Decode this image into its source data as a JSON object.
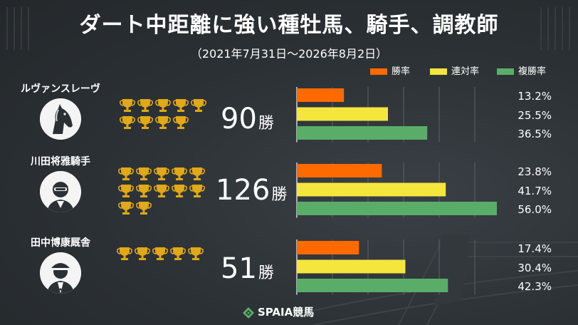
{
  "title": "ダート中距離に強い種牡馬、騎手、調教師",
  "subtitle": "（2021年7月31日～2026年8月2日）",
  "legend": [
    {
      "label": "勝率",
      "color": "#ff6a00"
    },
    {
      "label": "連対率",
      "color": "#f4e63c"
    },
    {
      "label": "複勝率",
      "color": "#5aad68"
    }
  ],
  "groups": [
    {
      "name": "ルヴァンスレーヴ",
      "avatar_icon": "horse-head-icon",
      "wins_number": "90",
      "wins_unit": "勝",
      "trophies": 9,
      "labels": [
        "13.2%",
        "25.5%",
        "36.5%"
      ]
    },
    {
      "name": "川田将雅騎手",
      "avatar_icon": "jockey-icon",
      "wins_number": "126",
      "wins_unit": "勝",
      "trophies": 12,
      "labels": [
        "23.8%",
        "41.7%",
        "56.0%"
      ]
    },
    {
      "name": "田中博康厩舎",
      "avatar_icon": "trainer-icon",
      "wins_number": "51",
      "wins_unit": "勝",
      "trophies": 5,
      "labels": [
        "17.4%",
        "30.4%",
        "42.3%"
      ]
    }
  ],
  "chart_data": {
    "type": "bar",
    "orientation": "horizontal",
    "title": "ダート中距離に強い種牡馬、騎手、調教師",
    "subtitle": "（2021年7月31日～2026年8月2日）",
    "categories": [
      "ルヴァンスレーヴ",
      "川田将雅騎手",
      "田中博康厩舎"
    ],
    "series": [
      {
        "name": "勝率",
        "color": "#ff6a00",
        "values": [
          13.2,
          23.8,
          17.4
        ]
      },
      {
        "name": "連対率",
        "color": "#f4e63c",
        "values": [
          25.5,
          41.7,
          30.4
        ]
      },
      {
        "name": "複勝率",
        "color": "#5aad68",
        "values": [
          36.5,
          56.0,
          42.3
        ]
      }
    ],
    "wins": [
      90,
      126,
      51
    ],
    "xlim": [
      0,
      56
    ],
    "grid": true,
    "legend_position": "top-right"
  },
  "footer": {
    "brand": "SPAIA競馬",
    "logo_icon": "spaia-logo-icon"
  }
}
